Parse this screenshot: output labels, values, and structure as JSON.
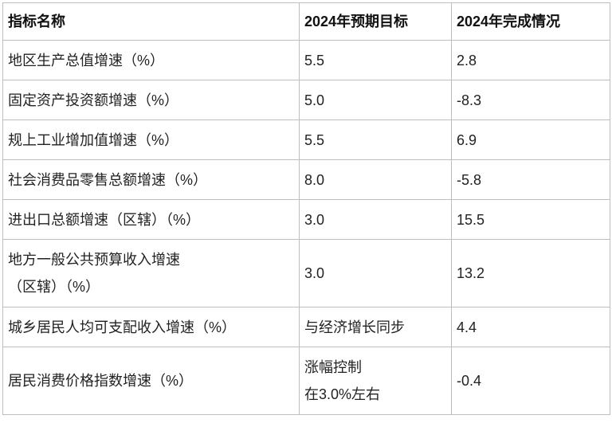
{
  "table": {
    "header": [
      "指标名称",
      "2024年预期目标",
      "2024年完成情况"
    ],
    "rows": [
      [
        [
          "地区生产总值增速（%）"
        ],
        [
          "5.5"
        ],
        [
          "2.8"
        ]
      ],
      [
        [
          "固定资产投资额增速（%）"
        ],
        [
          "5.0"
        ],
        [
          "-8.3"
        ]
      ],
      [
        [
          "规上工业增加值增速（%）"
        ],
        [
          "5.5"
        ],
        [
          "6.9"
        ]
      ],
      [
        [
          "社会消费品零售总额增速（%）"
        ],
        [
          "8.0"
        ],
        [
          "-5.8"
        ]
      ],
      [
        [
          "进出口总额增速（区辖）（%）"
        ],
        [
          "3.0"
        ],
        [
          "15.5"
        ]
      ],
      [
        [
          "地方一般公共预算收入增速",
          "（区辖）（%）"
        ],
        [
          "3.0"
        ],
        [
          "13.2"
        ]
      ],
      [
        [
          "城乡居民人均可支配收入增速（%）"
        ],
        [
          "与经济增长同步"
        ],
        [
          "4.4"
        ]
      ],
      [
        [
          "居民消费价格指数增速（%）"
        ],
        [
          "涨幅控制",
          "在3.0%左右"
        ],
        [
          "-0.4"
        ]
      ]
    ]
  }
}
